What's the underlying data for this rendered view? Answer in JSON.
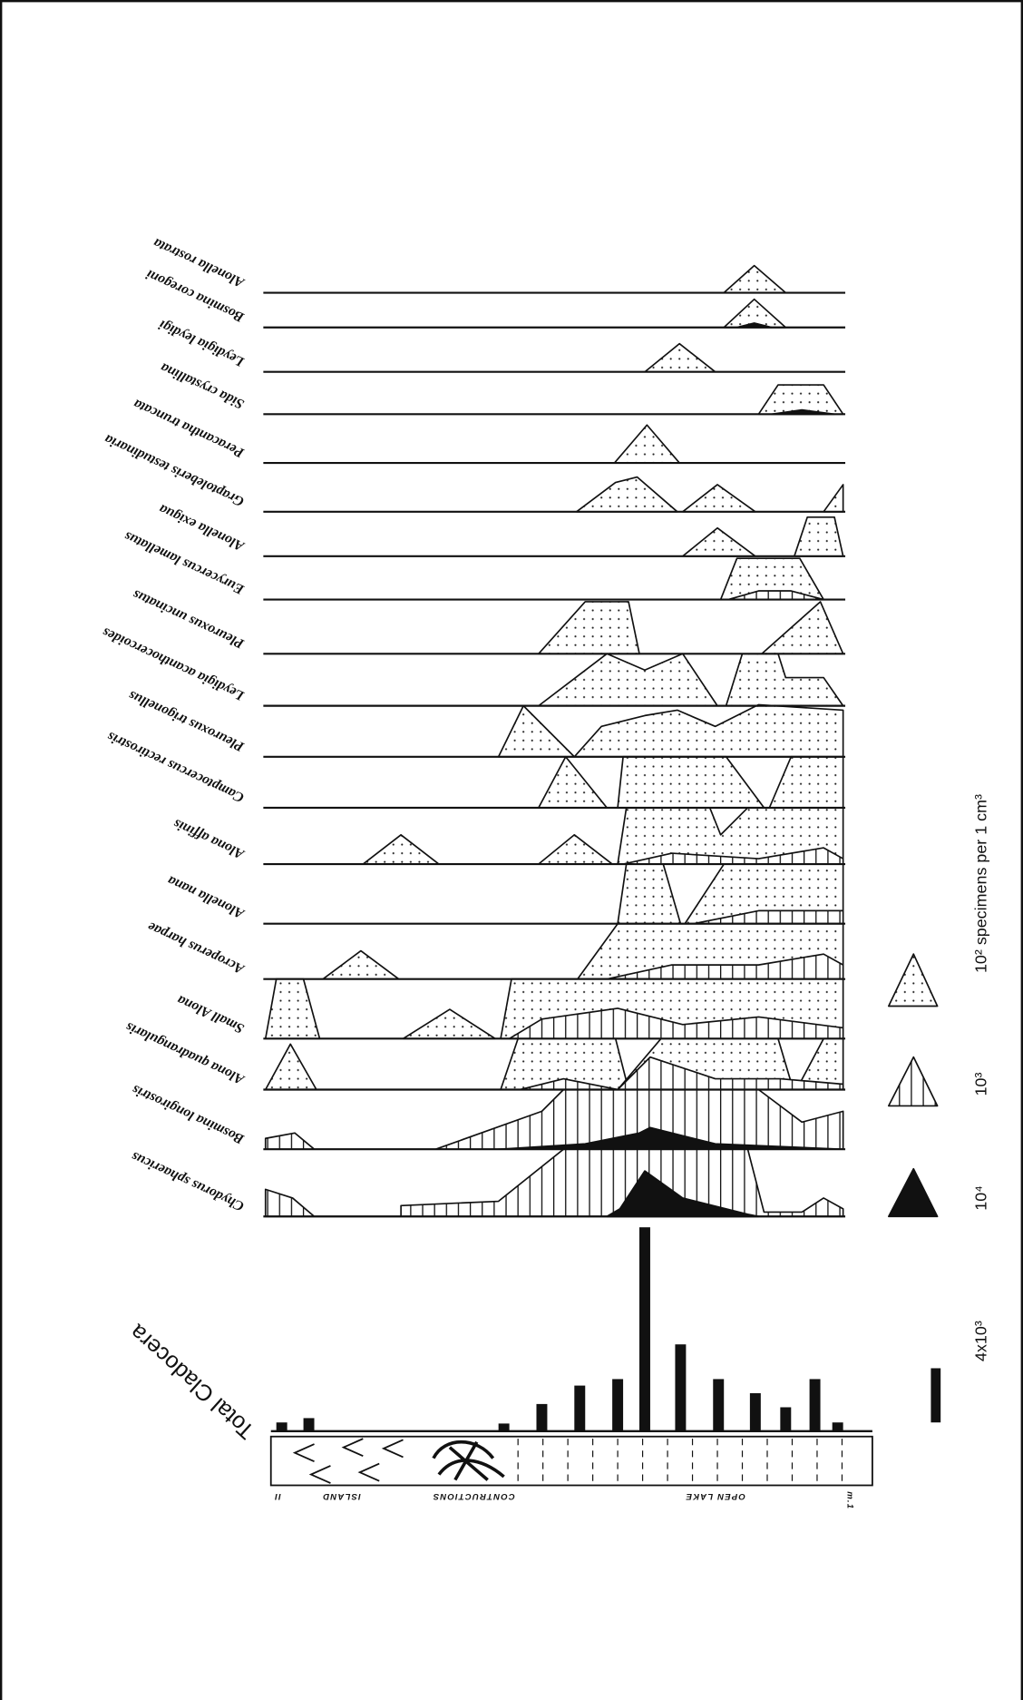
{
  "species": [
    "Alonella rostrata",
    "Bosmina coregoni",
    "Leydigia leydigi",
    "Sida crystallina",
    "Peracantha truncata",
    "Graptoleberis testudinaria",
    "Alonella exigua",
    "Eurycercus lamellatus",
    "Pleuroxus uncinatus",
    "Leydigia acanthocercoides",
    "Pleuroxus trigonellus",
    "Camptocercus rectirostris",
    "Alona affinis",
    "Alonella nana",
    "Acroperus harpae",
    "Small Alona",
    "Alona quadrangularis",
    "Bosmina longirostris",
    "Chydorus sphaericus"
  ],
  "legend": {
    "items": [
      "10² specimens per 1 cm³",
      "10³",
      "10⁴"
    ]
  },
  "total": {
    "label": "Total Cladocera",
    "scale": "4x10³"
  },
  "zones": [
    "ISLAND",
    "CONTRUCTIONS",
    "OPEN LAKE"
  ],
  "ends": [
    "II",
    "m.1"
  ]
}
